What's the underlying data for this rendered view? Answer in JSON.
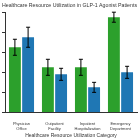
{
  "chart_data": {
    "type": "bar",
    "title": "Healthcare Resource Utilization in GLP-1 Agonist Patients",
    "x_label": "Healthcare Resource Utilization Category",
    "categories": [
      "Physician Office",
      "Outpatient Facility",
      "Inpatient Hospitalization",
      "Emergency Department"
    ],
    "series": [
      {
        "color": "#2ca02c",
        "values": [
          6.5,
          4.5,
          4.5,
          9.5
        ],
        "errors": [
          0.8,
          0.8,
          0.8,
          0.5
        ]
      },
      {
        "color": "#1f77b4",
        "values": [
          7.5,
          3.8,
          2.5,
          4.0
        ],
        "errors": [
          1.0,
          0.6,
          0.5,
          0.6
        ]
      }
    ],
    "ylim": [
      0,
      10
    ],
    "yticks": [
      0,
      2,
      4,
      6,
      8,
      10
    ],
    "grid": false,
    "tick_labels": "x"
  }
}
